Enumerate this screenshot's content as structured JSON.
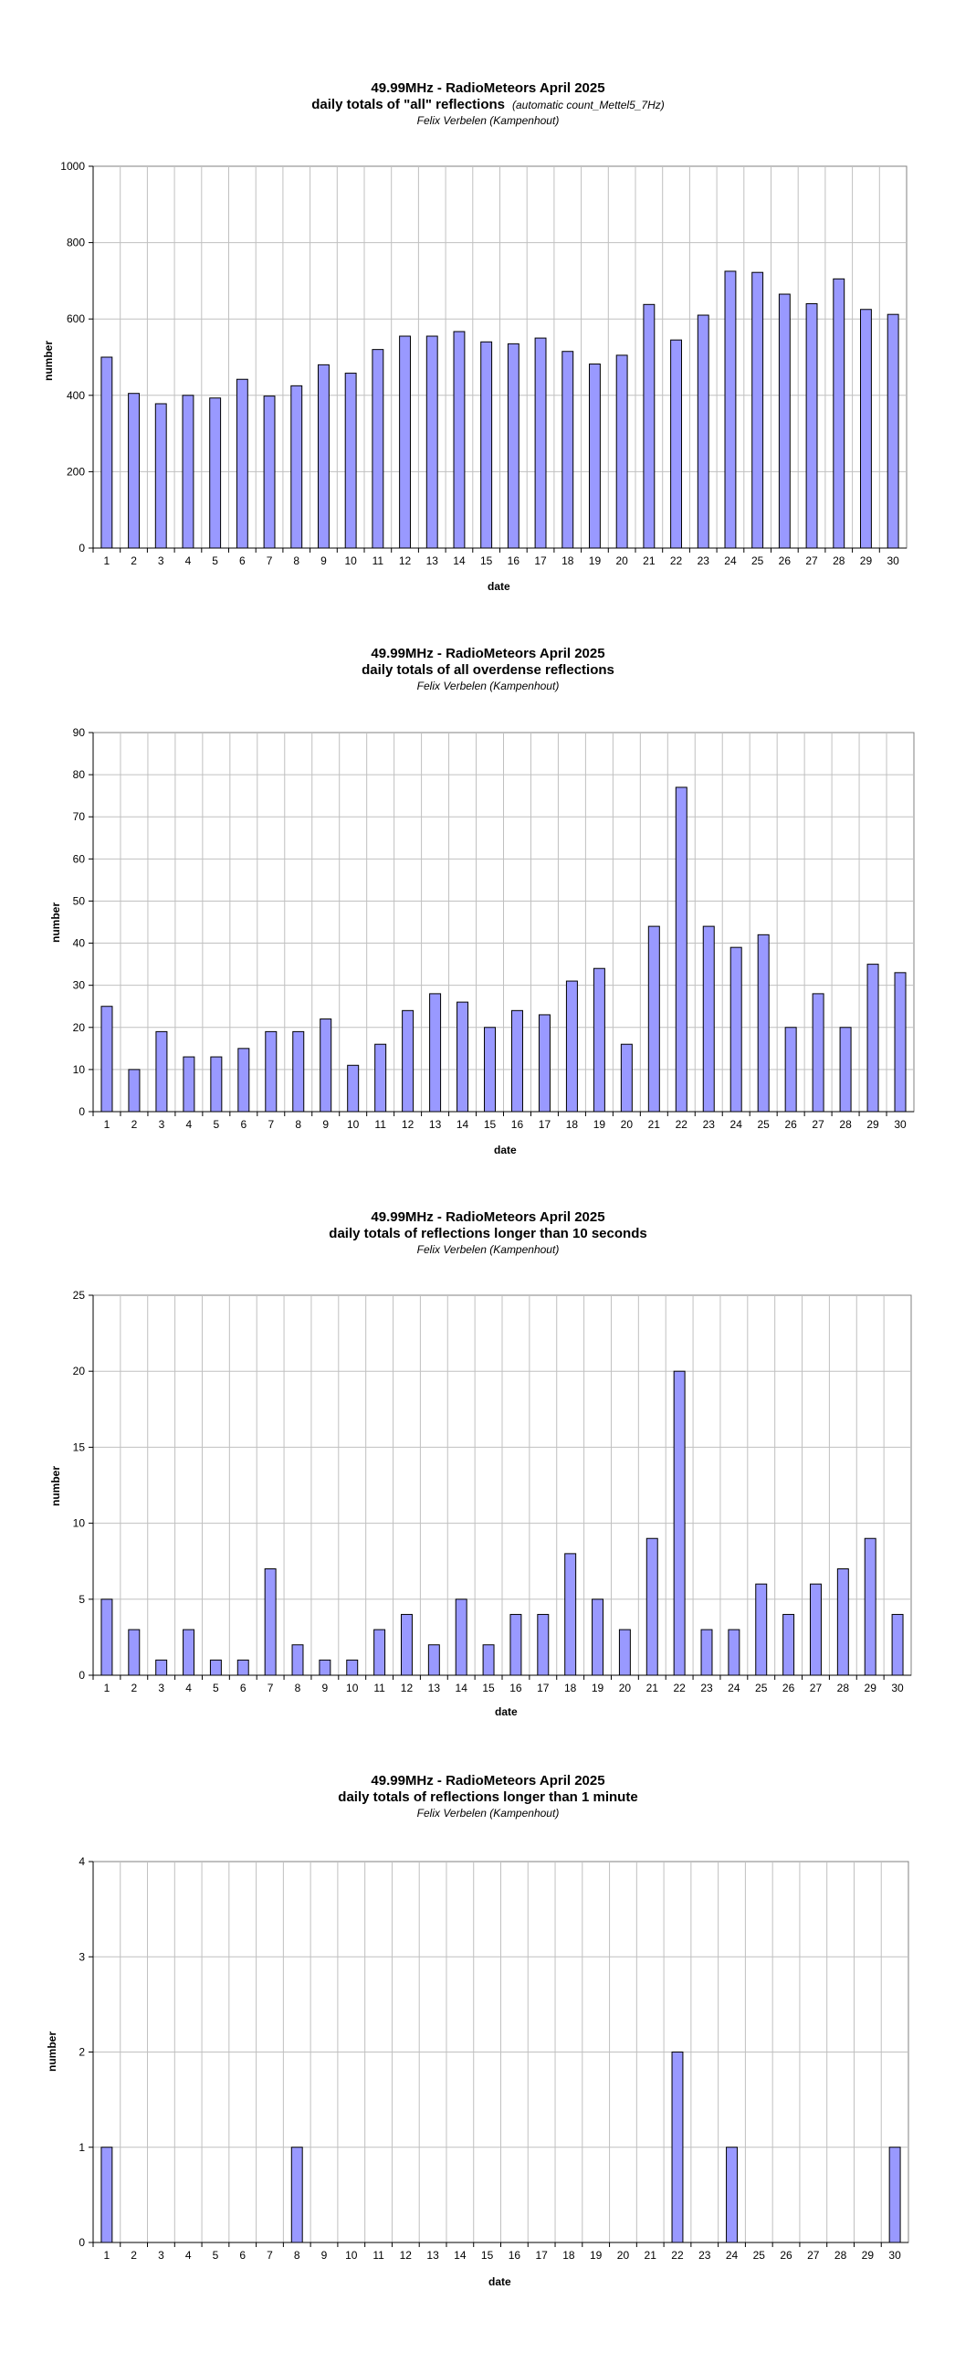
{
  "charts_common": {
    "bar_color": "#9999ff",
    "bar_stroke": "#000000",
    "grid_color": "#c0c0c0"
  },
  "chart_data": [
    {
      "type": "bar",
      "title": "49.99MHz - RadioMeteors April 2025",
      "subtitle": "daily totals of \"all\" reflections",
      "subtitle_note": "(automatic count_Mettel5_7Hz)",
      "author": "Felix Verbelen (Kampenhout)",
      "xlabel": "date",
      "ylabel": "number",
      "ylim": [
        0,
        1000
      ],
      "yticks": [
        0,
        200,
        400,
        600,
        800,
        1000
      ],
      "grid": true,
      "categories": [
        "1",
        "2",
        "3",
        "4",
        "5",
        "6",
        "7",
        "8",
        "9",
        "10",
        "11",
        "12",
        "13",
        "14",
        "15",
        "16",
        "17",
        "18",
        "19",
        "20",
        "21",
        "22",
        "23",
        "24",
        "25",
        "26",
        "27",
        "28",
        "29",
        "30"
      ],
      "values": [
        500,
        405,
        378,
        400,
        393,
        442,
        398,
        425,
        480,
        458,
        520,
        555,
        555,
        567,
        540,
        535,
        550,
        515,
        482,
        505,
        638,
        545,
        610,
        725,
        722,
        665,
        640,
        705,
        625,
        612
      ]
    },
    {
      "type": "bar",
      "title": "49.99MHz - RadioMeteors April 2025",
      "subtitle": "daily totals of all overdense reflections",
      "subtitle_note": "",
      "author": "Felix Verbelen (Kampenhout)",
      "xlabel": "date",
      "ylabel": "number",
      "ylim": [
        0,
        90
      ],
      "yticks": [
        0,
        10,
        20,
        30,
        40,
        50,
        60,
        70,
        80,
        90
      ],
      "grid": true,
      "categories": [
        "1",
        "2",
        "3",
        "4",
        "5",
        "6",
        "7",
        "8",
        "9",
        "10",
        "11",
        "12",
        "13",
        "14",
        "15",
        "16",
        "17",
        "18",
        "19",
        "20",
        "21",
        "22",
        "23",
        "24",
        "25",
        "26",
        "27",
        "28",
        "29",
        "30"
      ],
      "values": [
        25,
        10,
        19,
        13,
        13,
        15,
        19,
        19,
        22,
        11,
        16,
        24,
        28,
        26,
        20,
        24,
        23,
        31,
        34,
        16,
        44,
        77,
        44,
        39,
        42,
        20,
        28,
        20,
        35,
        33
      ]
    },
    {
      "type": "bar",
      "title": "49.99MHz - RadioMeteors April 2025",
      "subtitle": "daily totals of reflections longer than 10 seconds",
      "subtitle_note": "",
      "author": "Felix Verbelen (Kampenhout)",
      "xlabel": "date",
      "ylabel": "number",
      "ylim": [
        0,
        25
      ],
      "yticks": [
        0,
        5,
        10,
        15,
        20,
        25
      ],
      "grid": true,
      "categories": [
        "1",
        "2",
        "3",
        "4",
        "5",
        "6",
        "7",
        "8",
        "9",
        "10",
        "11",
        "12",
        "13",
        "14",
        "15",
        "16",
        "17",
        "18",
        "19",
        "20",
        "21",
        "22",
        "23",
        "24",
        "25",
        "26",
        "27",
        "28",
        "29",
        "30"
      ],
      "values": [
        5,
        3,
        1,
        3,
        1,
        1,
        7,
        2,
        1,
        1,
        3,
        4,
        2,
        5,
        2,
        4,
        4,
        8,
        5,
        3,
        9,
        20,
        3,
        3,
        6,
        4,
        6,
        7,
        9,
        4
      ]
    },
    {
      "type": "bar",
      "title": "49.99MHz - RadioMeteors April 2025",
      "subtitle": "daily totals of reflections longer than 1 minute",
      "subtitle_note": "",
      "author": "Felix Verbelen (Kampenhout)",
      "xlabel": "date",
      "ylabel": "number",
      "ylim": [
        0,
        4
      ],
      "yticks": [
        0,
        1,
        2,
        3,
        4
      ],
      "grid": true,
      "categories": [
        "1",
        "2",
        "3",
        "4",
        "5",
        "6",
        "7",
        "8",
        "9",
        "10",
        "11",
        "12",
        "13",
        "14",
        "15",
        "16",
        "17",
        "18",
        "19",
        "20",
        "21",
        "22",
        "23",
        "24",
        "25",
        "26",
        "27",
        "28",
        "29",
        "30"
      ],
      "values": [
        1,
        0,
        0,
        0,
        0,
        0,
        0,
        1,
        0,
        0,
        0,
        0,
        0,
        0,
        0,
        0,
        0,
        0,
        0,
        0,
        0,
        2,
        0,
        1,
        0,
        0,
        0,
        0,
        0,
        1
      ]
    }
  ]
}
